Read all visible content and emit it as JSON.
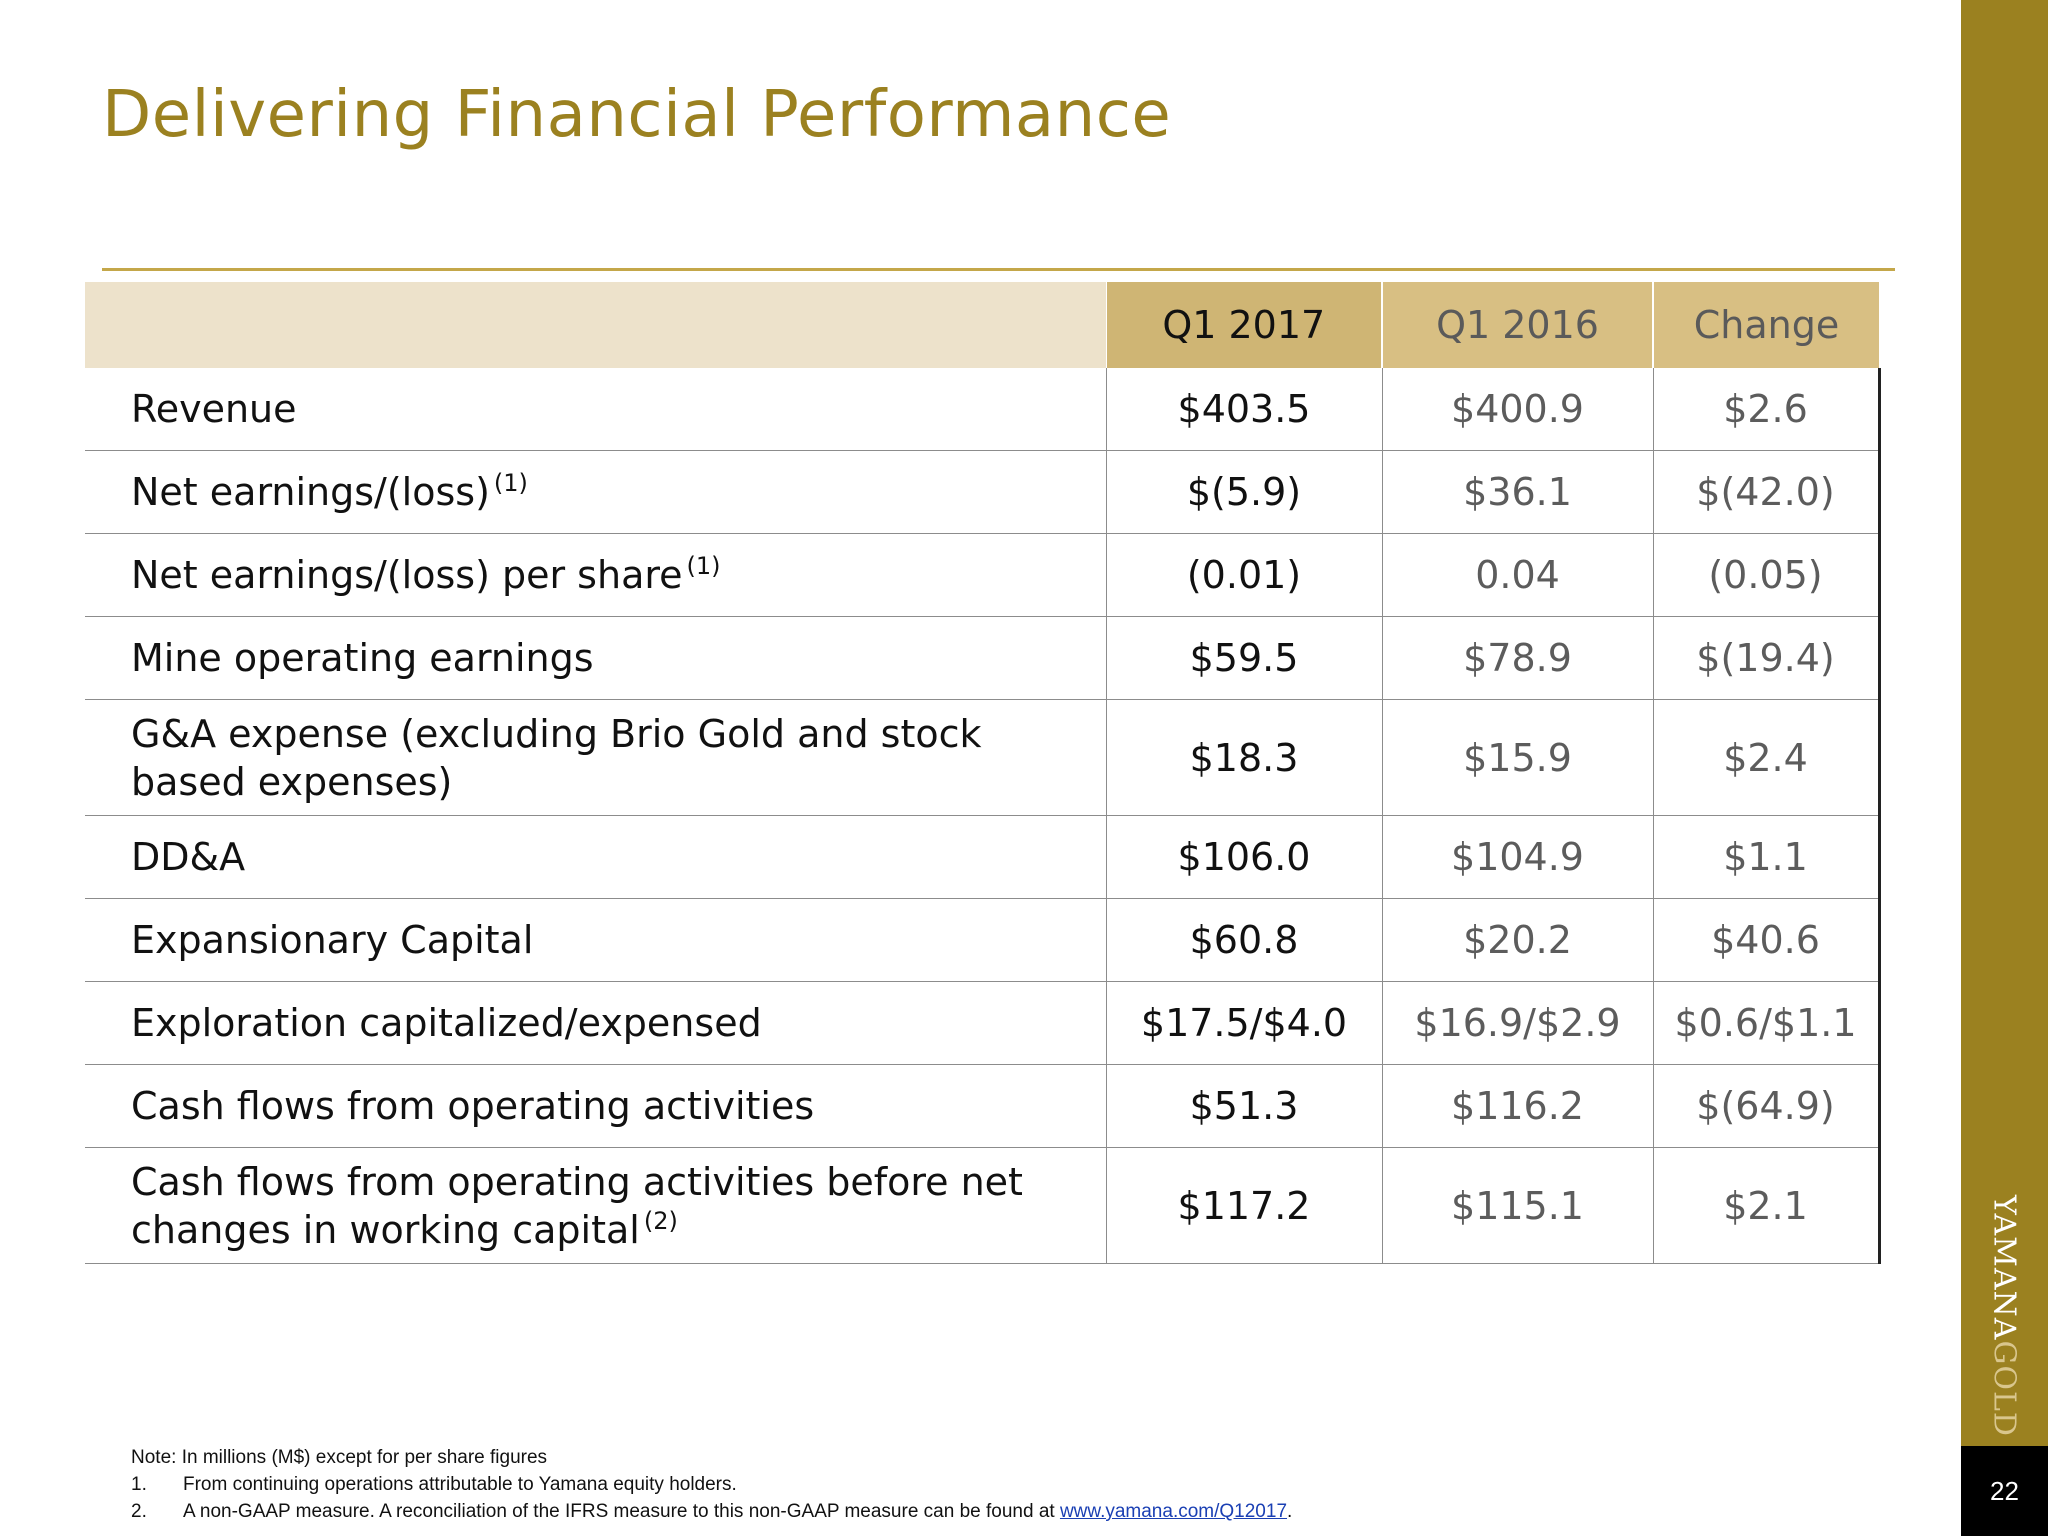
{
  "title": "Delivering Financial Performance",
  "table": {
    "headers": [
      "",
      "Q1 2017",
      "Q1 2016",
      "Change"
    ],
    "rows": [
      {
        "label": "Revenue",
        "sup": "",
        "q1_2017": "$403.5",
        "q1_2016": "$400.9",
        "change": "$2.6"
      },
      {
        "label": "Net earnings/(loss)",
        "sup": "(1)",
        "q1_2017": "$(5.9)",
        "q1_2016": "$36.1",
        "change": "$(42.0)"
      },
      {
        "label": "Net earnings/(loss) per share",
        "sup": "(1)",
        "q1_2017": "(0.01)",
        "q1_2016": "0.04",
        "change": "(0.05)"
      },
      {
        "label": "Mine operating earnings",
        "sup": "",
        "q1_2017": "$59.5",
        "q1_2016": "$78.9",
        "change": "$(19.4)"
      },
      {
        "label": "G&A expense (excluding Brio Gold and stock based expenses)",
        "sup": "",
        "q1_2017": "$18.3",
        "q1_2016": "$15.9",
        "change": "$2.4"
      },
      {
        "label": "DD&A",
        "sup": "",
        "q1_2017": "$106.0",
        "q1_2016": "$104.9",
        "change": "$1.1"
      },
      {
        "label": "Expansionary Capital",
        "sup": "",
        "q1_2017": "$60.8",
        "q1_2016": "$20.2",
        "change": "$40.6"
      },
      {
        "label": "Exploration capitalized/expensed",
        "sup": "",
        "q1_2017": "$17.5/$4.0",
        "q1_2016": "$16.9/$2.9",
        "change": "$0.6/$1.1"
      },
      {
        "label": "Cash flows from operating activities",
        "sup": "",
        "q1_2017": "$51.3",
        "q1_2016": "$116.2",
        "change": "$(64.9)"
      },
      {
        "label": "Cash flows from operating activities before net changes in working capital",
        "sup": "(2)",
        "q1_2017": "$117.2",
        "q1_2016": "$115.1",
        "change": "$2.1"
      }
    ]
  },
  "notes": {
    "intro": "Note: In millions (M$) except for per share figures",
    "items": [
      {
        "num": "1.",
        "text": "From continuing operations attributable to Yamana equity holders.",
        "link": ""
      },
      {
        "num": "2.",
        "text": "A non-GAAP measure. A reconciliation of  the IFRS measure to this non-GAAP measure can be found at ",
        "link": "www.yamana.com/Q12017",
        "after": "."
      }
    ]
  },
  "logo": {
    "part1": "YAMANA",
    "part2": "GOLD"
  },
  "page_number": "22",
  "colors": {
    "accent": "#9b8120",
    "header_light": "#ede2cb",
    "header_dark": "#cfb574"
  }
}
